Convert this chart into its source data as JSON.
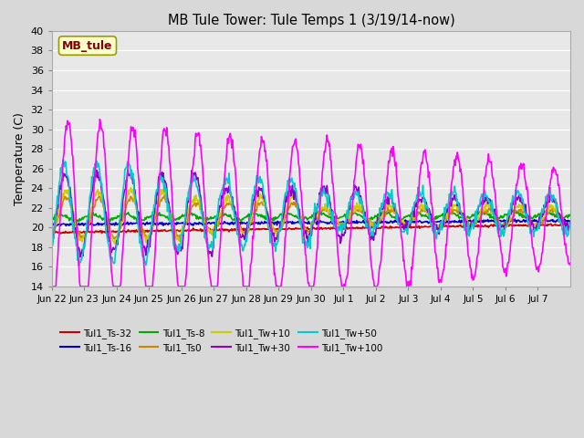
{
  "title": "MB Tule Tower: Tule Temps 1 (3/19/14-now)",
  "ylabel": "Temperature (C)",
  "ylim": [
    14,
    40
  ],
  "yticks": [
    14,
    16,
    18,
    20,
    22,
    24,
    26,
    28,
    30,
    32,
    34,
    36,
    38,
    40
  ],
  "fig_facecolor": "#d8d8d8",
  "ax_facecolor": "#e8e8e8",
  "legend_label": "MB_tule",
  "x_tick_labels": [
    "Jun 22",
    "Jun 23",
    "Jun 24",
    "Jun 25",
    "Jun 26",
    "Jun 27",
    "Jun 28",
    "Jun 29",
    "Jun 30",
    "Jul 1",
    "Jul 2",
    "Jul 3",
    "Jul 4",
    "Jul 5",
    "Jul 6",
    "Jul 7"
  ],
  "n_days": 16,
  "series_names": [
    "Tul1_Ts-32",
    "Tul1_Ts-16",
    "Tul1_Ts-8",
    "Tul1_Ts0",
    "Tul1_Tw+10",
    "Tul1_Tw+30",
    "Tul1_Tw+50",
    "Tul1_Tw+100"
  ],
  "series_colors": [
    "#cc0000",
    "#0000cc",
    "#00aa00",
    "#cc8800",
    "#cccc00",
    "#8800cc",
    "#00cccc",
    "#ff00ff"
  ]
}
